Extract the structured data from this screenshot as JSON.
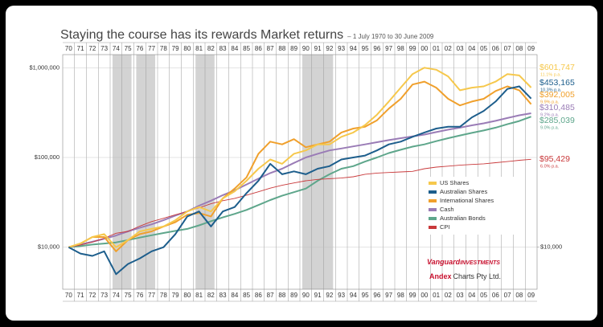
{
  "chart_data": {
    "type": "line",
    "title": "Staying the course has its rewards Market returns",
    "subtitle": "– 1 July 1970 to 30 June 2009",
    "log_scale": true,
    "grid": true,
    "categories": [
      "70",
      "71",
      "72",
      "73",
      "74",
      "75",
      "76",
      "77",
      "78",
      "79",
      "80",
      "81",
      "82",
      "83",
      "84",
      "85",
      "86",
      "87",
      "88",
      "89",
      "90",
      "91",
      "92",
      "93",
      "94",
      "95",
      "96",
      "97",
      "98",
      "99",
      "00",
      "01",
      "02",
      "03",
      "04",
      "05",
      "06",
      "07",
      "08",
      "09"
    ],
    "ylim": [
      3400,
      1400000
    ],
    "yticks": [
      {
        "value": 10000,
        "label": "$10,000"
      },
      {
        "value": 100000,
        "label": "$100,000"
      },
      {
        "value": 1000000,
        "label": "$1,000,000"
      }
    ],
    "y2lim": [
      3400,
      1400000
    ],
    "y2ticks": [
      {
        "value": 10000,
        "label": "$10,000"
      }
    ],
    "shaded_periods": [
      [
        "74",
        "75"
      ],
      [
        "76",
        "77"
      ],
      [
        "81",
        "82"
      ],
      [
        "90",
        "92"
      ]
    ],
    "series": [
      {
        "name": "US Shares",
        "color": "#f6c84c",
        "final_label": "$601,747",
        "rate_label": "11.1% p.a.",
        "values": [
          10000,
          11000,
          13000,
          14000,
          10000,
          12000,
          15000,
          16000,
          17000,
          20000,
          25000,
          28000,
          25000,
          35000,
          42000,
          55000,
          75000,
          95000,
          85000,
          110000,
          120000,
          140000,
          140000,
          170000,
          190000,
          230000,
          300000,
          420000,
          600000,
          850000,
          1000000,
          950000,
          800000,
          560000,
          600000,
          620000,
          700000,
          850000,
          820000,
          601747
        ]
      },
      {
        "name": "Australian Shares",
        "color": "#1d5e8c",
        "final_label": "$453,165",
        "rate_label": "10.3% p.a.",
        "values": [
          10000,
          8500,
          8000,
          9000,
          5000,
          6500,
          7500,
          9000,
          10000,
          14000,
          22000,
          25000,
          17000,
          25000,
          28000,
          40000,
          55000,
          85000,
          65000,
          70000,
          65000,
          75000,
          80000,
          95000,
          100000,
          105000,
          120000,
          140000,
          150000,
          170000,
          190000,
          210000,
          220000,
          220000,
          280000,
          330000,
          420000,
          580000,
          620000,
          453165
        ]
      },
      {
        "name": "International Shares",
        "color": "#f0a02c",
        "final_label": "$392,005",
        "rate_label": "9.9% p.a.",
        "values": [
          10000,
          11000,
          13000,
          13000,
          9000,
          12000,
          14000,
          15000,
          17000,
          19000,
          23000,
          24000,
          22000,
          35000,
          45000,
          60000,
          110000,
          150000,
          140000,
          160000,
          130000,
          140000,
          150000,
          190000,
          210000,
          220000,
          260000,
          350000,
          450000,
          650000,
          700000,
          600000,
          450000,
          380000,
          420000,
          450000,
          550000,
          620000,
          560000,
          392005
        ]
      },
      {
        "name": "Cash",
        "color": "#9a7cb6",
        "final_label": "$310,485",
        "rate_label": "9.2% p.a.",
        "values": [
          10000,
          10700,
          11500,
          12400,
          13500,
          15000,
          16500,
          18000,
          20000,
          22500,
          25000,
          29000,
          33000,
          38000,
          43000,
          50000,
          58000,
          67000,
          75000,
          87000,
          100000,
          110000,
          120000,
          126000,
          133000,
          140000,
          148000,
          156000,
          164000,
          172000,
          180000,
          192000,
          204000,
          215000,
          228000,
          240000,
          256000,
          275000,
          295000,
          310485
        ]
      },
      {
        "name": "Australian Bonds",
        "color": "#5ea68b",
        "final_label": "$285,039",
        "rate_label": "9.0% p.a.",
        "values": [
          10000,
          10300,
          10700,
          11000,
          11300,
          12000,
          12800,
          13600,
          14400,
          15200,
          16000,
          17500,
          19500,
          21500,
          23500,
          26000,
          29500,
          33500,
          37500,
          41000,
          45000,
          55000,
          65000,
          75000,
          80000,
          90000,
          100000,
          112000,
          122000,
          132000,
          140000,
          152000,
          164000,
          176000,
          188000,
          200000,
          215000,
          235000,
          255000,
          285039
        ]
      },
      {
        "name": "CPI",
        "color": "#c9393b",
        "final_label": "$95,429",
        "rate_label": "6.0% p.a.",
        "values": [
          10000,
          10600,
          11400,
          12600,
          14300,
          15000,
          17200,
          19300,
          21000,
          23000,
          25000,
          27500,
          30500,
          33000,
          35000,
          38000,
          41500,
          45500,
          49000,
          52000,
          55000,
          57000,
          58000,
          59000,
          61000,
          65000,
          67000,
          68000,
          69000,
          70000,
          75000,
          78000,
          80000,
          82000,
          83500,
          85000,
          87500,
          90000,
          93000,
          95429
        ]
      }
    ],
    "logo_brand": "Vanguard",
    "logo_suffix": "INVESTMENTS",
    "source_brand": "Andex",
    "source_rest": "Charts Pty Ltd."
  }
}
